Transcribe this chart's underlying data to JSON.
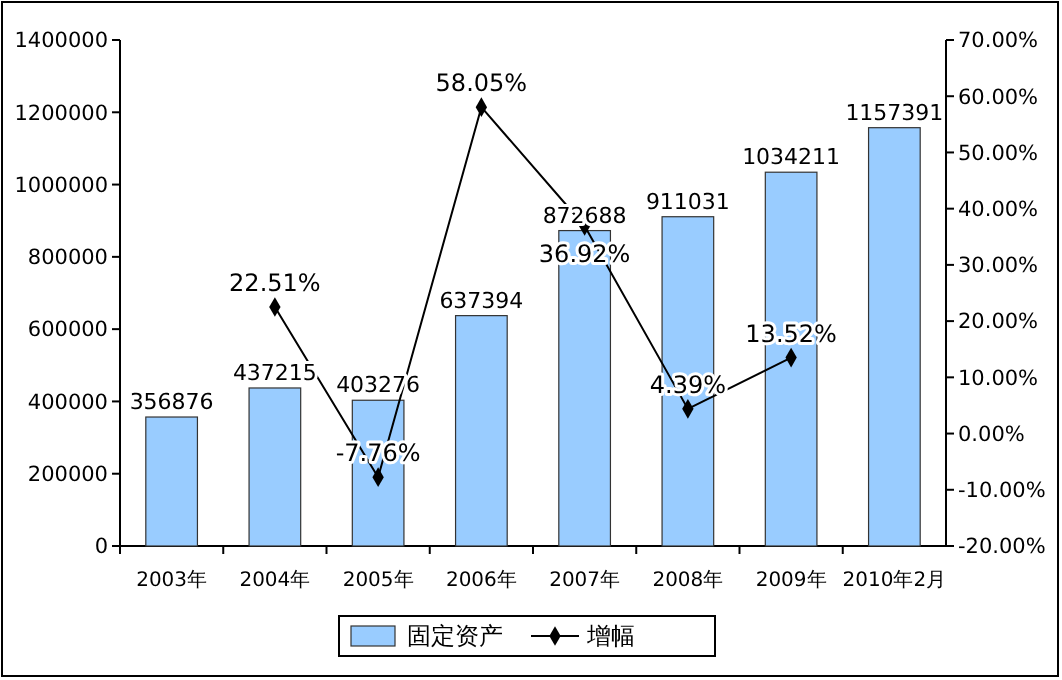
{
  "chart_data": {
    "type": "bar",
    "categories": [
      "2003年",
      "2004年",
      "2005年",
      "2006年",
      "2007年",
      "2008年",
      "2009年",
      "2010年2月"
    ],
    "series": [
      {
        "name": "固定资产",
        "color": "#99ccff",
        "values": [
          356876,
          437215,
          403276,
          637394,
          872688,
          911031,
          1034211,
          1157391
        ],
        "value_labels": [
          "356876",
          "437215",
          "403276",
          "637394",
          "872688",
          "911031",
          "1034211",
          "1157391"
        ]
      },
      {
        "name": "增幅",
        "type": "line",
        "axis": "y2",
        "color": "#000000",
        "values": [
          null,
          22.51,
          -7.76,
          58.05,
          36.92,
          4.39,
          13.52,
          null
        ],
        "value_labels": [
          null,
          "22.51%",
          "-7.76%",
          "58.05%",
          "36.92%",
          "4.39%",
          "13.52%",
          null
        ]
      }
    ],
    "ylim": [
      0,
      1400000
    ],
    "yticks": [
      0,
      200000,
      400000,
      600000,
      800000,
      1000000,
      1200000,
      1400000
    ],
    "y2lim": [
      -20,
      70
    ],
    "y2ticks": [
      {
        "value": -20,
        "label": "-20.00%"
      },
      {
        "value": -10,
        "label": "-10.00%"
      },
      {
        "value": 0,
        "label": "0.00%"
      },
      {
        "value": 10,
        "label": "10.00%"
      },
      {
        "value": 20,
        "label": "20.00%"
      },
      {
        "value": 30,
        "label": "30.00%"
      },
      {
        "value": 40,
        "label": "40.00%"
      },
      {
        "value": 50,
        "label": "50.00%"
      },
      {
        "value": 60,
        "label": "60.00%"
      },
      {
        "value": 70,
        "label": "70.00%"
      }
    ],
    "legend": "bottom",
    "marker": "diamond",
    "line_style": "solid",
    "grid": false
  }
}
